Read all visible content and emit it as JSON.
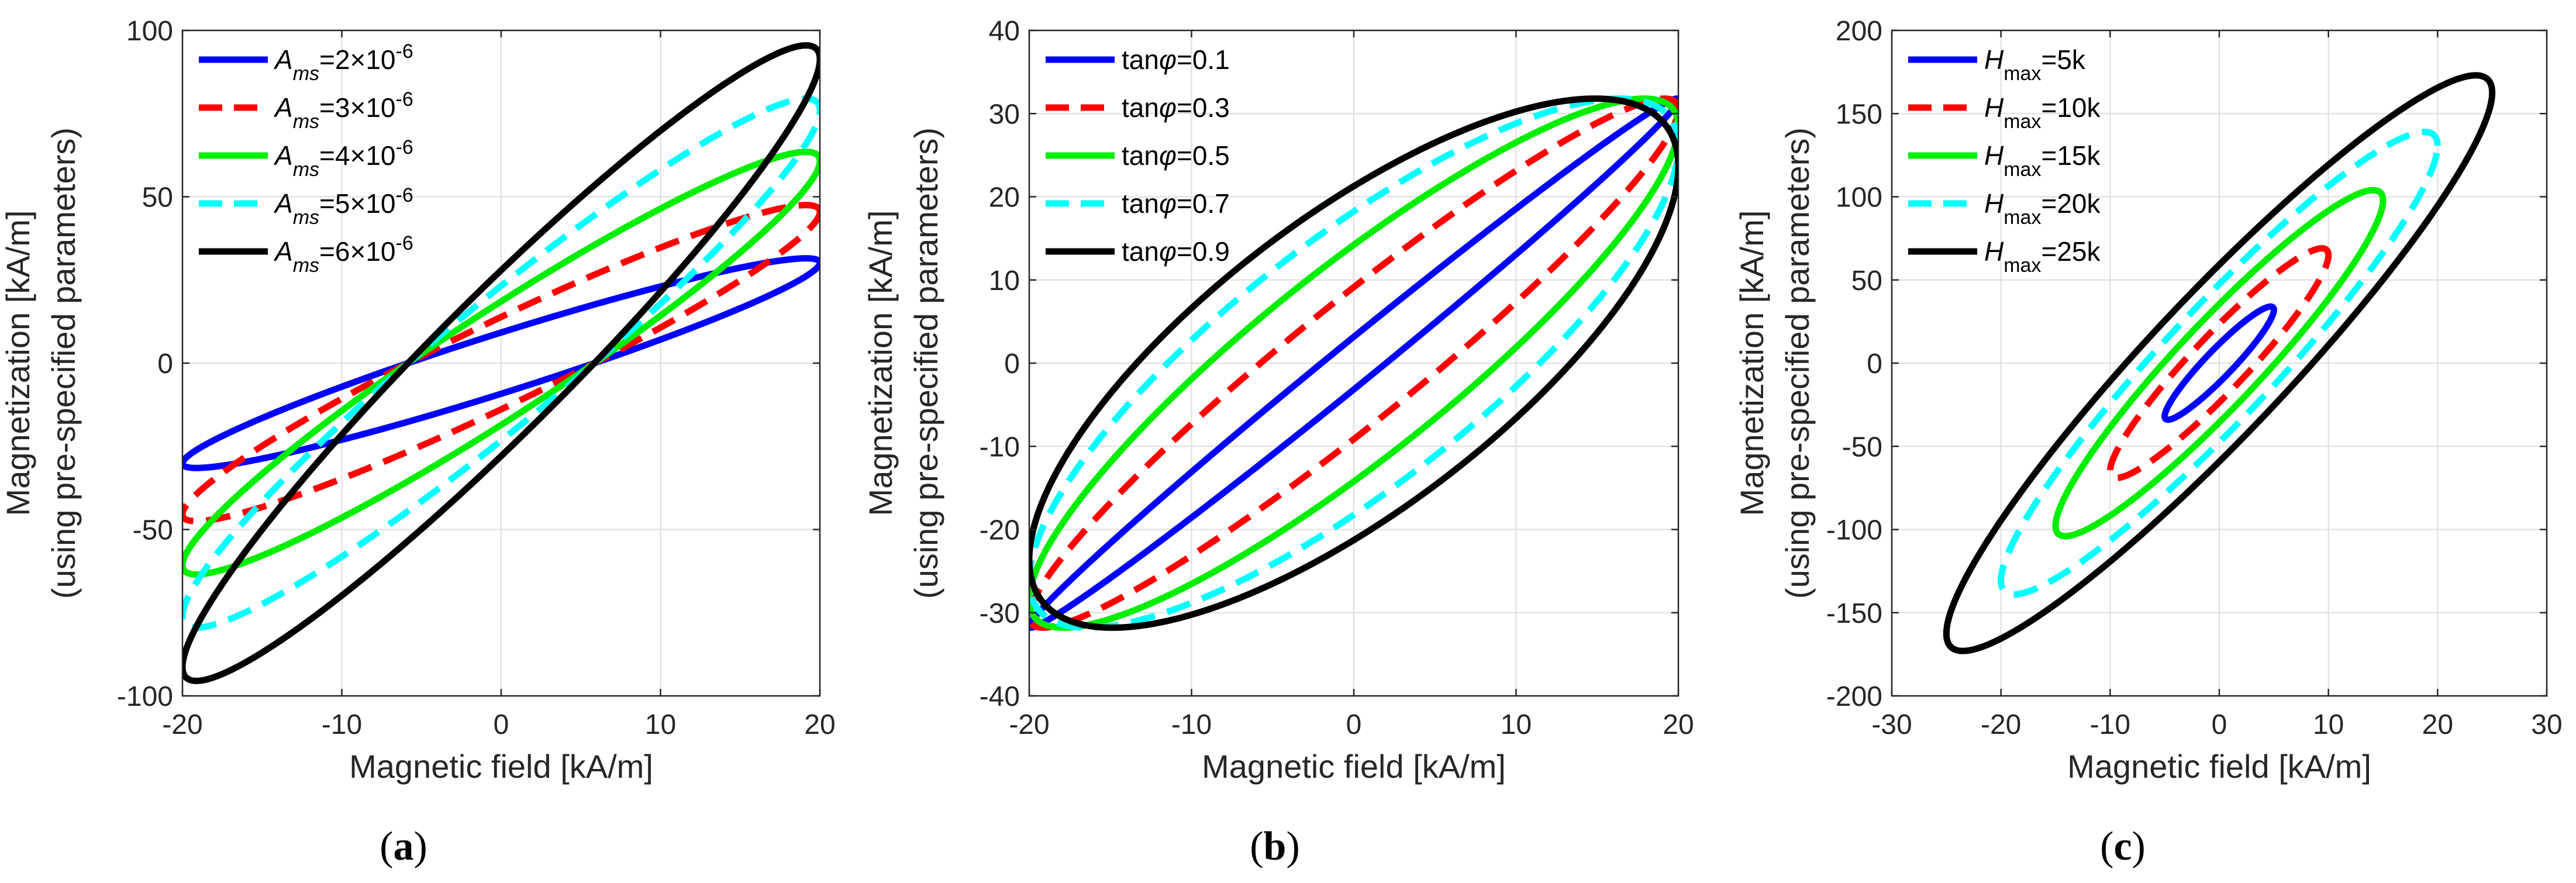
{
  "chart_data": [
    {
      "type": "line",
      "panel": "a",
      "caption": "(a)",
      "xlabel": "Magnetic field [kA/m]",
      "ylabel_line1": "Magnetization [kA/m]",
      "ylabel_line2": "(using pre-specified parameters)",
      "xlim": [
        -20,
        20
      ],
      "ylim": [
        -100,
        100
      ],
      "xticks": [
        -20,
        -10,
        0,
        10,
        20
      ],
      "yticks": [
        -100,
        -50,
        0,
        50,
        100
      ],
      "xtick_labels": [
        "-20",
        "-10",
        "0",
        "10",
        "20"
      ],
      "ytick_labels": [
        "-100",
        "-50",
        "0",
        "50",
        "100"
      ],
      "grid": true,
      "legend_position": "top-left",
      "series": [
        {
          "name": "Ams=2×10-6",
          "legend_parts": [
            "A",
            "ms",
            "=2×10",
            "-6"
          ],
          "color": "#0000ff",
          "dash": "solid",
          "Hmax": 20,
          "Mmax": 31.5,
          "phi_deg": 17
        },
        {
          "name": "Ams=3×10-6",
          "legend_parts": [
            "A",
            "ms",
            "=3×10",
            "-6"
          ],
          "color": "#ff0000",
          "dash": "dashed",
          "Hmax": 20,
          "Mmax": 47.5,
          "phi_deg": 17
        },
        {
          "name": "Ams=4×10-6",
          "legend_parts": [
            "A",
            "ms",
            "=4×10",
            "-6"
          ],
          "color": "#00ee00",
          "dash": "solid",
          "Hmax": 20,
          "Mmax": 63.5,
          "phi_deg": 17
        },
        {
          "name": "Ams=5×10-6",
          "legend_parts": [
            "A",
            "ms",
            "=5×10",
            "-6"
          ],
          "color": "#00ffff",
          "dash": "dashed",
          "Hmax": 20,
          "Mmax": 79.5,
          "phi_deg": 17
        },
        {
          "name": "Ams=6×10-6",
          "legend_parts": [
            "A",
            "ms",
            "=6×10",
            "-6"
          ],
          "color": "#000000",
          "dash": "solid",
          "Hmax": 20,
          "Mmax": 95.5,
          "phi_deg": 17
        }
      ]
    },
    {
      "type": "line",
      "panel": "b",
      "caption": "(b)",
      "xlabel": "Magnetic field [kA/m]",
      "ylabel_line1": "Magnetization [kA/m]",
      "ylabel_line2": "(using pre-specified parameters)",
      "xlim": [
        -20,
        20
      ],
      "ylim": [
        -40,
        40
      ],
      "xticks": [
        -20,
        -10,
        0,
        10,
        20
      ],
      "yticks": [
        -40,
        -30,
        -20,
        -10,
        0,
        10,
        20,
        30,
        40
      ],
      "xtick_labels": [
        "-20",
        "-10",
        "0",
        "10",
        "20"
      ],
      "ytick_labels": [
        "-40",
        "-30",
        "-20",
        "-10",
        "0",
        "10",
        "20",
        "30",
        "40"
      ],
      "grid": true,
      "legend_position": "top-left",
      "series": [
        {
          "name": "tanφ=0.1",
          "legend_parts": [
            "tan",
            "φ",
            "=0.1",
            ""
          ],
          "color": "#0000ff",
          "dash": "solid",
          "Hmax": 20,
          "Mmax": 31.8,
          "tanphi": 0.1
        },
        {
          "name": "tanφ=0.3",
          "legend_parts": [
            "tan",
            "φ",
            "=0.3",
            ""
          ],
          "color": "#ff0000",
          "dash": "dashed",
          "Hmax": 20,
          "Mmax": 31.8,
          "tanphi": 0.3
        },
        {
          "name": "tanφ=0.5",
          "legend_parts": [
            "tan",
            "φ",
            "=0.5",
            ""
          ],
          "color": "#00ee00",
          "dash": "solid",
          "Hmax": 20,
          "Mmax": 31.8,
          "tanphi": 0.5
        },
        {
          "name": "tanφ=0.7",
          "legend_parts": [
            "tan",
            "φ",
            "=0.7",
            ""
          ],
          "color": "#00ffff",
          "dash": "dashed",
          "Hmax": 20,
          "Mmax": 31.8,
          "tanphi": 0.7
        },
        {
          "name": "tanφ=0.9",
          "legend_parts": [
            "tan",
            "φ",
            "=0.9",
            ""
          ],
          "color": "#000000",
          "dash": "solid",
          "Hmax": 20,
          "Mmax": 31.8,
          "tanphi": 0.9
        }
      ]
    },
    {
      "type": "line",
      "panel": "c",
      "caption": "(c)",
      "xlabel": "Magnetic field [kA/m]",
      "ylabel_line1": "Magnetization [kA/m]",
      "ylabel_line2": "(using pre-specified parameters)",
      "xlim": [
        -30,
        30
      ],
      "ylim": [
        -200,
        200
      ],
      "xticks": [
        -30,
        -20,
        -10,
        0,
        10,
        20,
        30
      ],
      "yticks": [
        -200,
        -150,
        -100,
        -50,
        0,
        50,
        100,
        150,
        200
      ],
      "xtick_labels": [
        "-30",
        "-20",
        "-10",
        "0",
        "10",
        "20",
        "30"
      ],
      "ytick_labels": [
        "-200",
        "-150",
        "-100",
        "-50",
        "0",
        "50",
        "100",
        "150",
        "200"
      ],
      "grid": true,
      "legend_position": "top-left",
      "series": [
        {
          "name": "Hmax=5k",
          "legend_parts": [
            "H",
            "max",
            "=5k",
            ""
          ],
          "color": "#0000ff",
          "dash": "solid",
          "Hmax": 5,
          "Mmax": 34,
          "phi_deg": 20
        },
        {
          "name": "Hmax=10k",
          "legend_parts": [
            "H",
            "max",
            "=10k",
            ""
          ],
          "color": "#ff0000",
          "dash": "dashed",
          "Hmax": 10,
          "Mmax": 69,
          "phi_deg": 20
        },
        {
          "name": "Hmax=15k",
          "legend_parts": [
            "H",
            "max",
            "=15k",
            ""
          ],
          "color": "#00ee00",
          "dash": "solid",
          "Hmax": 15,
          "Mmax": 104,
          "phi_deg": 20
        },
        {
          "name": "Hmax=20k",
          "legend_parts": [
            "H",
            "max",
            "=20k",
            ""
          ],
          "color": "#00ffff",
          "dash": "dashed",
          "Hmax": 20,
          "Mmax": 139,
          "phi_deg": 20
        },
        {
          "name": "Hmax=25k",
          "legend_parts": [
            "H",
            "max",
            "=25k",
            ""
          ],
          "color": "#000000",
          "dash": "solid",
          "Hmax": 25,
          "Mmax": 173,
          "phi_deg": 20
        }
      ]
    }
  ]
}
